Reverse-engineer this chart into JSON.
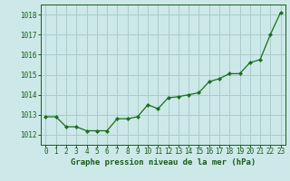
{
  "x": [
    0,
    1,
    2,
    3,
    4,
    5,
    6,
    7,
    8,
    9,
    10,
    11,
    12,
    13,
    14,
    15,
    16,
    17,
    18,
    19,
    20,
    21,
    22,
    23
  ],
  "y": [
    1012.9,
    1012.9,
    1012.4,
    1012.4,
    1012.2,
    1012.2,
    1012.2,
    1012.8,
    1012.8,
    1012.9,
    1013.5,
    1013.3,
    1013.85,
    1013.9,
    1014.0,
    1014.1,
    1014.65,
    1014.8,
    1015.05,
    1015.05,
    1015.6,
    1015.75,
    1017.0,
    1018.1
  ],
  "title": "Graphe pression niveau de la mer (hPa)",
  "ylim": [
    1011.5,
    1018.5
  ],
  "xlim": [
    -0.5,
    23.5
  ],
  "yticks": [
    1012,
    1013,
    1014,
    1015,
    1016,
    1017,
    1018
  ],
  "xticks": [
    0,
    1,
    2,
    3,
    4,
    5,
    6,
    7,
    8,
    9,
    10,
    11,
    12,
    13,
    14,
    15,
    16,
    17,
    18,
    19,
    20,
    21,
    22,
    23
  ],
  "line_color": "#1a6e1a",
  "marker_color": "#1a6e1a",
  "bg_color": "#cce8e8",
  "grid_color": "#aacccc",
  "title_color": "#1a5c1a",
  "tick_color": "#1a5c1a",
  "axis_color": "#1a5c1a",
  "title_fontsize": 6.5,
  "tick_fontsize": 5.5
}
